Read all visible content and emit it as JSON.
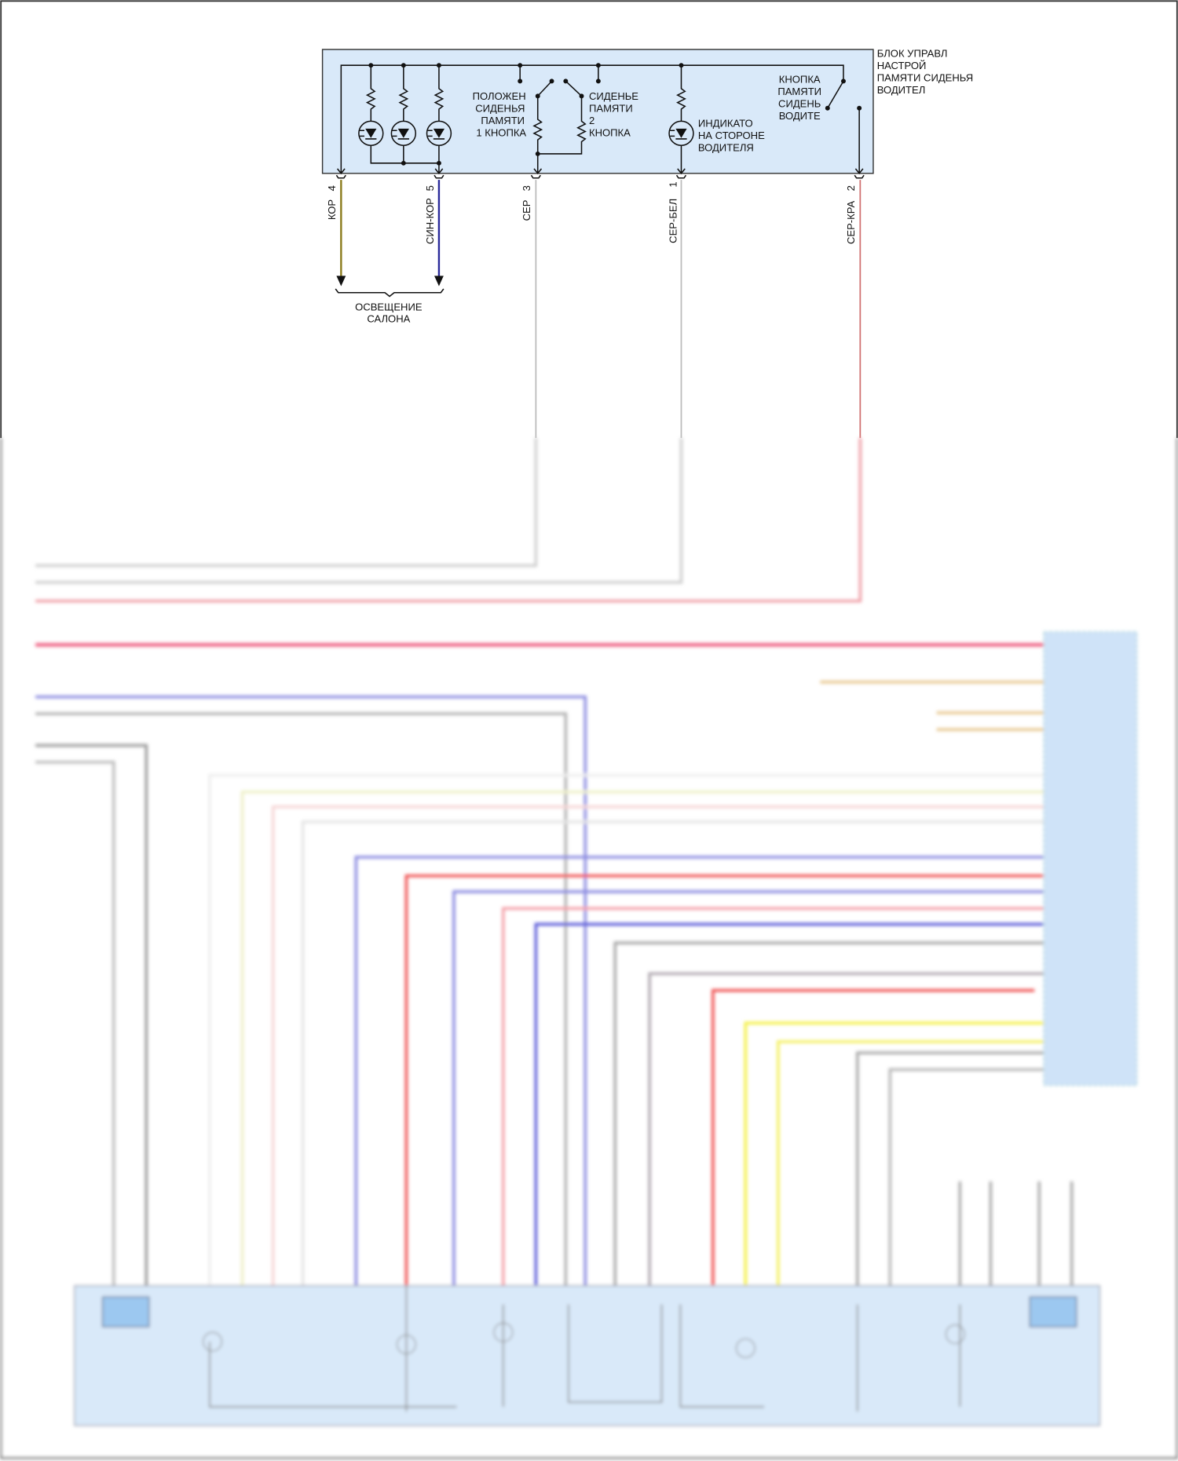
{
  "control_unit": {
    "title_lines": [
      "БЛОК УПРАВЛ",
      "НАСТРОЙ",
      "ПАМЯТИ СИДЕНЬЯ",
      "ВОДИТЕЛ"
    ],
    "switch1_lines": [
      "ПОЛОЖЕН",
      "СИДЕНЬЯ",
      "ПАМЯТИ",
      "1 КНОПКА"
    ],
    "switch2_lines": [
      "СИДЕНЬЕ",
      "ПАМЯТИ",
      "2",
      "КНОПКА"
    ],
    "indicator_lines": [
      "ИНДИКАТО",
      "НА СТОРОНЕ",
      "ВОДИТЕЛЯ"
    ],
    "driver_button_lines": [
      "КНОПКА",
      "ПАМЯТИ",
      "СИДЕНЬ",
      "ВОДИТЕ"
    ]
  },
  "pins": [
    {
      "pin": "4",
      "wire": "КОР",
      "color": "#8a7a1a"
    },
    {
      "pin": "5",
      "wire": "СИН-КОР",
      "color": "#2a2a9a"
    },
    {
      "pin": "3",
      "wire": "СЕР",
      "color": "#bbbbbb"
    },
    {
      "pin": "1",
      "wire": "СЕР-БЕЛ",
      "color": "#bbbbbb"
    },
    {
      "pin": "2",
      "wire": "СЕР-КРА",
      "color": "#d07070"
    }
  ],
  "interior_lighting": {
    "lines": [
      "ОСВЕЩЕНИЕ",
      "САЛОНА"
    ]
  },
  "colors": {
    "module_fill": "#d9e9f9",
    "wire_pink": "#f06a8a",
    "wire_blue": "#5a5ad8",
    "wire_red": "#f05050",
    "wire_yellow": "#f4f040",
    "wire_gray": "#a0a0a0"
  }
}
